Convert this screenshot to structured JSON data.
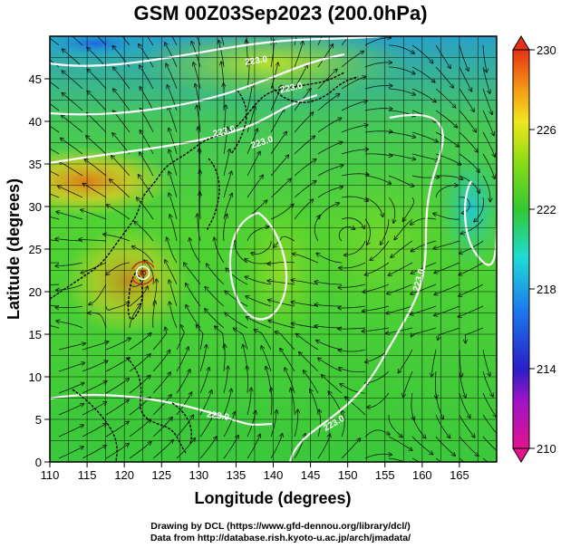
{
  "title": "GSM 00Z03Sep2023 (200.0hPa)",
  "credits": {
    "line1": "Drawing by DCL (https://www.gfd-dennou.org/library/dcl/)",
    "line2": "Data from http://database.rish.kyoto-u.ac.jp/arch/jmadata/"
  },
  "axes": {
    "xlabel": "Longitude (degrees)",
    "ylabel": "Latitude  (degrees)",
    "xlim": [
      110,
      170
    ],
    "ylim": [
      0,
      50
    ],
    "xticks": [
      110,
      115,
      120,
      125,
      130,
      135,
      140,
      145,
      150,
      155,
      160,
      165
    ],
    "yticks": [
      0,
      5,
      10,
      15,
      20,
      25,
      30,
      35,
      40,
      45
    ],
    "grid": true
  },
  "colorbar": {
    "min": 210,
    "max": 230,
    "ticks": [
      210,
      214,
      218,
      222,
      226,
      230
    ],
    "colors": [
      "#e0148c",
      "#2a1ec8",
      "#1c7cf0",
      "#1edcd2",
      "#32c832",
      "#8cdc14",
      "#f0e61e",
      "#f59b14",
      "#e63214"
    ]
  },
  "contour_labels": [
    "223.0",
    "223.0",
    "223.0",
    "223.0",
    "223.0",
    "223.0",
    "223.0"
  ],
  "features": {
    "typhoon_center": {
      "lon": 122.5,
      "lat": 22.2
    },
    "highs": [
      {
        "lon": 137,
        "lat": 25
      },
      {
        "lon": 150,
        "lat": 26
      },
      {
        "lon": 127,
        "lat": 24
      }
    ]
  }
}
